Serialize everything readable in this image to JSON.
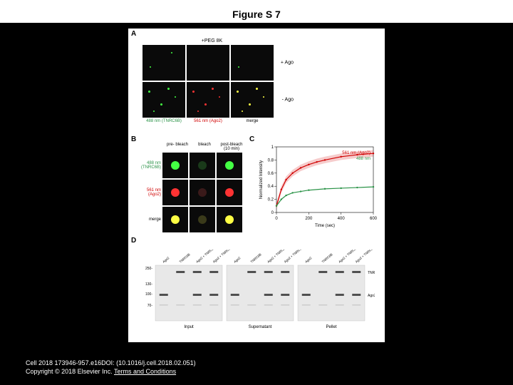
{
  "figure_title": "Figure S 7",
  "panel_labels": {
    "a": "A",
    "b": "B",
    "c": "C",
    "d": "D"
  },
  "panelA": {
    "top_header": "+PEG 8K",
    "row_labels": [
      "+ Ago",
      "- Ago"
    ],
    "channel_labels": [
      {
        "text": "488 nm\n(TNRC6B)",
        "color": "#2b9348"
      },
      {
        "text": "561 nm\n(Ago2)",
        "color": "#d00000"
      },
      {
        "text": "merge",
        "color": "#000"
      }
    ]
  },
  "panelB": {
    "col_headers": [
      "pre-\nbleach",
      "bleach",
      "post-bleach\n(10 min)"
    ],
    "row_labels": [
      {
        "text": "488 nm\n(TNRC6B)",
        "color": "#2b9348"
      },
      {
        "text": "561 nm\n(Ago2)",
        "color": "#d00000"
      },
      {
        "text": "merge",
        "color": "#000"
      }
    ]
  },
  "panelC": {
    "type": "line",
    "xlabel": "Time (sec)",
    "ylabel": "Normalized Intensity",
    "xlim": [
      0,
      600
    ],
    "ylim": [
      0,
      1.0
    ],
    "xticks": [
      0,
      200,
      400,
      600
    ],
    "yticks": [
      0,
      0.2,
      0.4,
      0.6,
      0.8,
      1.0
    ],
    "series": [
      {
        "name": "561 nm (Ago2)",
        "color": "#d00000",
        "x": [
          0,
          30,
          60,
          100,
          150,
          200,
          250,
          300,
          400,
          500,
          600
        ],
        "y": [
          0.1,
          0.35,
          0.5,
          0.6,
          0.68,
          0.73,
          0.77,
          0.8,
          0.85,
          0.88,
          0.9
        ]
      },
      {
        "name": "488 nm",
        "color": "#2b9348",
        "x": [
          0,
          30,
          60,
          100,
          150,
          200,
          300,
          400,
          500,
          600
        ],
        "y": [
          0.1,
          0.2,
          0.26,
          0.3,
          0.32,
          0.34,
          0.36,
          0.37,
          0.38,
          0.39
        ]
      }
    ],
    "legend_fontsize": 6,
    "axis_fontsize": 6
  },
  "panelD": {
    "type": "gel",
    "lane_groups": [
      "Input",
      "Supernatant",
      "Pellet"
    ],
    "lanes_per_group": [
      "Ago2",
      "TNRC6B",
      "Ago2 + TNRC6B",
      "Ago2 + TNRC6B"
    ],
    "mw_markers": [
      250,
      130,
      100,
      70
    ],
    "band_labels_right": [
      "TNRC6B",
      "Ago2"
    ],
    "band_color": "#505050",
    "bg_color": "#e8e8e8",
    "lane_line_color": "#000",
    "fontsize": 6
  },
  "citation": {
    "line1": "Cell 2018 173946-957.e16DOI: (10.1016/j.cell.2018.02.051)",
    "line2_prefix": "Copyright © 2018 Elsevier Inc. ",
    "terms": "Terms and Conditions"
  },
  "colors": {
    "bg": "#000000",
    "figure_bg": "#ffffff",
    "text": "#000000",
    "green": "#44ff44",
    "red": "#ff3333",
    "yellow": "#ffff44"
  }
}
